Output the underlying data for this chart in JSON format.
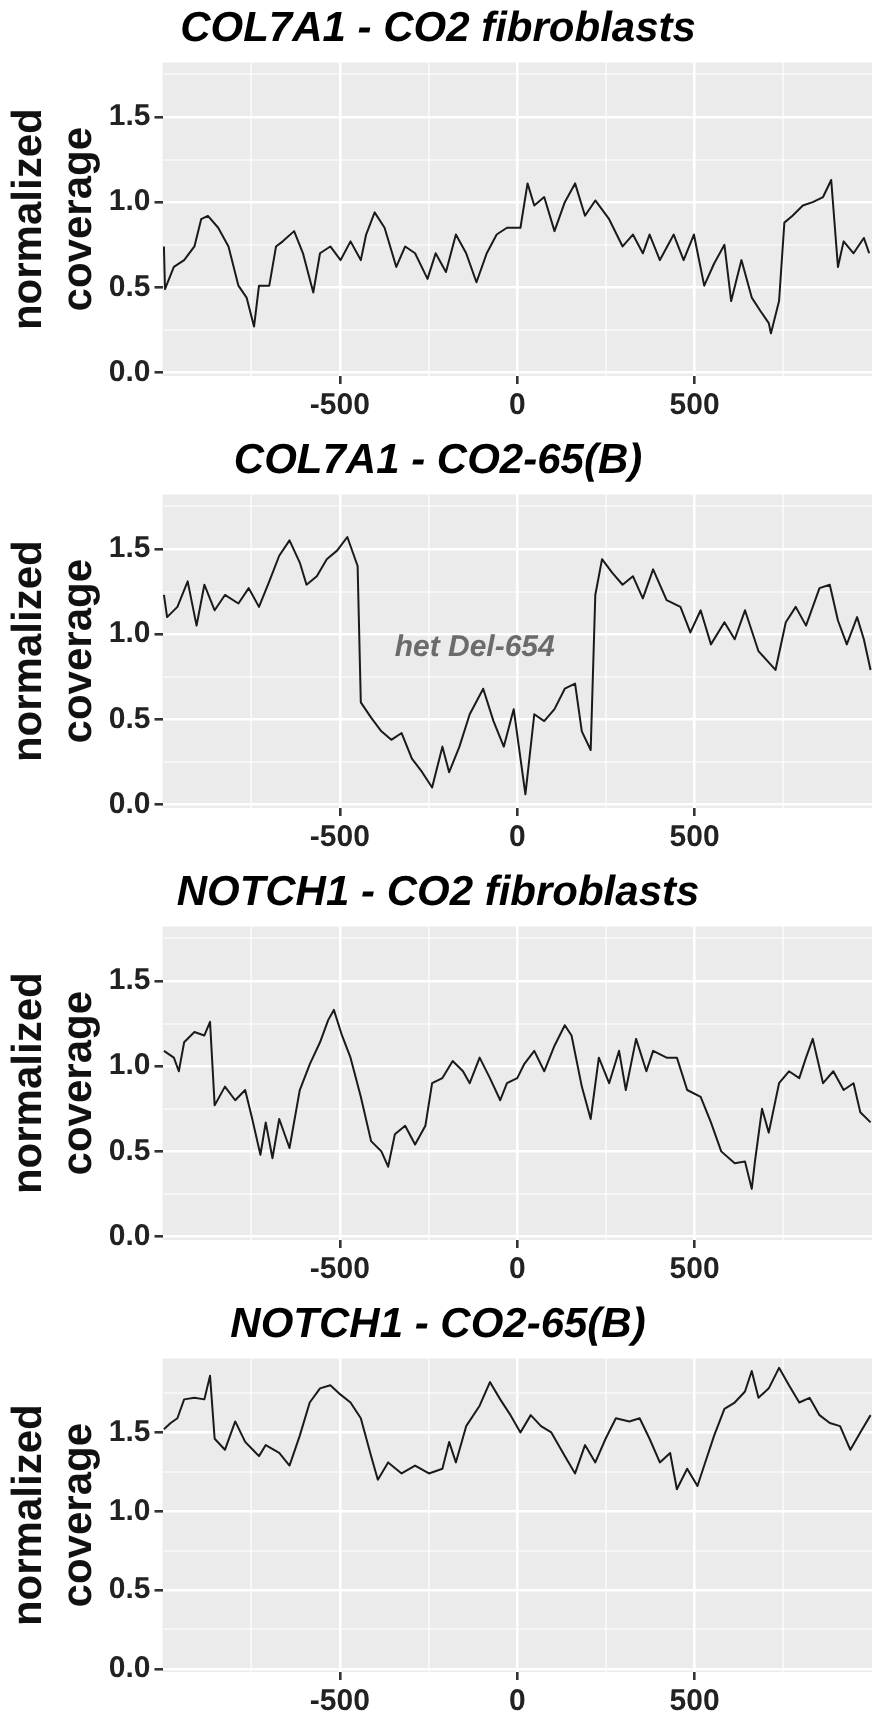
{
  "chart_data": [
    {
      "type": "line",
      "title": "COL7A1 - CO2 fibroblasts",
      "ylabel": "normalized\ncoverage",
      "grid": true,
      "xlim": [
        -1000,
        1000
      ],
      "ylim": [
        -0.02,
        1.82
      ],
      "xticks": [
        {
          "value": -750,
          "label": null
        },
        -500,
        {
          "value": -250,
          "label": null
        },
        0,
        {
          "value": 250,
          "label": null
        },
        500,
        {
          "value": 750,
          "label": null
        }
      ],
      "yticks": [
        {
          "value": 0,
          "label": "0.0"
        },
        {
          "value": 0.25,
          "label": null
        },
        {
          "value": 0.5,
          "label": "0.5"
        },
        {
          "value": 0.75,
          "label": null
        },
        {
          "value": 1,
          "label": "1.0"
        },
        {
          "value": 1.25,
          "label": null
        },
        {
          "value": 1.5,
          "label": "1.5"
        },
        {
          "value": 1.75,
          "label": null
        }
      ],
      "x": [
        -996,
        -993,
        -968,
        -939,
        -910,
        -891,
        -872,
        -843,
        -814,
        -786,
        -763,
        -742,
        -728,
        -699,
        -680,
        -661,
        -629,
        -604,
        -575,
        -556,
        -527,
        -498,
        -470,
        -441,
        -426,
        -402,
        -374,
        -341,
        -316,
        -288,
        -253,
        -230,
        -201,
        -173,
        -144,
        -115,
        -86,
        -58,
        -29,
        9,
        29,
        48,
        76,
        105,
        134,
        163,
        191,
        220,
        259,
        297,
        326,
        354,
        373,
        402,
        441,
        469,
        498,
        527,
        555,
        584,
        603,
        632,
        661,
        686,
        709,
        715,
        738,
        753,
        776,
        805,
        833,
        862,
        885,
        904,
        920,
        948,
        977,
        992
      ],
      "series": [
        {
          "color": "#1a1a1a",
          "values": [
            0.74,
            0.49,
            0.62,
            0.66,
            0.74,
            0.9,
            0.92,
            0.85,
            0.74,
            0.51,
            0.44,
            0.27,
            0.51,
            0.51,
            0.74,
            0.77,
            0.83,
            0.7,
            0.47,
            0.7,
            0.74,
            0.66,
            0.77,
            0.66,
            0.81,
            0.94,
            0.85,
            0.62,
            0.74,
            0.7,
            0.55,
            0.7,
            0.59,
            0.81,
            0.7,
            0.53,
            0.7,
            0.81,
            0.85,
            0.85,
            1.11,
            0.98,
            1.03,
            0.83,
            1.0,
            1.11,
            0.92,
            1.01,
            0.9,
            0.74,
            0.81,
            0.7,
            0.81,
            0.66,
            0.81,
            0.66,
            0.81,
            0.51,
            0.64,
            0.75,
            0.42,
            0.66,
            0.44,
            0.36,
            0.29,
            0.23,
            0.42,
            0.88,
            0.92,
            0.98,
            1.0,
            1.03,
            1.13,
            0.62,
            0.77,
            0.7,
            0.79,
            0.7
          ]
        }
      ]
    },
    {
      "type": "line",
      "title": "COL7A1 - CO2-65(B)",
      "ylabel": "normalized\ncoverage",
      "grid": true,
      "xlim": [
        -1000,
        1000
      ],
      "ylim": [
        -0.02,
        1.82
      ],
      "xticks": [
        {
          "value": -750,
          "label": null
        },
        -500,
        {
          "value": -250,
          "label": null
        },
        0,
        {
          "value": 250,
          "label": null
        },
        500,
        {
          "value": 750,
          "label": null
        }
      ],
      "yticks": [
        {
          "value": 0,
          "label": "0.0"
        },
        {
          "value": 0.25,
          "label": null
        },
        {
          "value": 0.5,
          "label": "0.5"
        },
        {
          "value": 0.75,
          "label": null
        },
        {
          "value": 1,
          "label": "1.0"
        },
        {
          "value": 1.25,
          "label": null
        },
        {
          "value": 1.5,
          "label": "1.5"
        },
        {
          "value": 1.75,
          "label": null
        }
      ],
      "annotations": [
        "het Del-654"
      ],
      "x": [
        -996,
        -987,
        -958,
        -929,
        -904,
        -882,
        -853,
        -824,
        -786,
        -757,
        -728,
        -699,
        -671,
        -642,
        -613,
        -594,
        -565,
        -537,
        -508,
        -479,
        -450,
        -441,
        -412,
        -383,
        -355,
        -326,
        -297,
        -268,
        -240,
        -211,
        -192,
        -163,
        -134,
        -96,
        -67,
        -38,
        -10,
        23,
        48,
        76,
        105,
        134,
        163,
        182,
        207,
        220,
        239,
        268,
        297,
        326,
        354,
        383,
        421,
        460,
        488,
        517,
        546,
        584,
        613,
        642,
        680,
        728,
        757,
        785,
        814,
        852,
        881,
        904,
        929,
        958,
        977,
        996
      ],
      "series": [
        {
          "color": "#1a1a1a",
          "values": [
            1.23,
            1.1,
            1.16,
            1.31,
            1.05,
            1.29,
            1.14,
            1.23,
            1.18,
            1.27,
            1.16,
            1.31,
            1.46,
            1.55,
            1.42,
            1.29,
            1.34,
            1.44,
            1.49,
            1.57,
            1.4,
            0.6,
            0.51,
            0.43,
            0.38,
            0.42,
            0.27,
            0.19,
            0.1,
            0.34,
            0.19,
            0.34,
            0.53,
            0.68,
            0.49,
            0.34,
            0.56,
            0.06,
            0.53,
            0.49,
            0.56,
            0.68,
            0.71,
            0.43,
            0.32,
            1.23,
            1.44,
            1.36,
            1.29,
            1.34,
            1.21,
            1.38,
            1.2,
            1.16,
            1.01,
            1.14,
            0.94,
            1.07,
            0.97,
            1.14,
            0.9,
            0.79,
            1.07,
            1.16,
            1.05,
            1.27,
            1.29,
            1.08,
            0.94,
            1.1,
            0.97,
            0.79
          ]
        }
      ]
    },
    {
      "type": "line",
      "title": "NOTCH1 - CO2 fibroblasts",
      "ylabel": "normalized\ncoverage",
      "grid": true,
      "xlim": [
        -1000,
        1000
      ],
      "ylim": [
        -0.02,
        1.82
      ],
      "xticks": [
        {
          "value": -750,
          "label": null
        },
        -500,
        {
          "value": -250,
          "label": null
        },
        0,
        {
          "value": 250,
          "label": null
        },
        500,
        {
          "value": 750,
          "label": null
        }
      ],
      "yticks": [
        {
          "value": 0,
          "label": "0.0"
        },
        {
          "value": 0.25,
          "label": null
        },
        {
          "value": 0.5,
          "label": "0.5"
        },
        {
          "value": 0.75,
          "label": null
        },
        {
          "value": 1,
          "label": "1.0"
        },
        {
          "value": 1.25,
          "label": null
        },
        {
          "value": 1.5,
          "label": "1.5"
        },
        {
          "value": 1.75,
          "label": null
        }
      ],
      "x": [
        -996,
        -968,
        -954,
        -939,
        -910,
        -882,
        -866,
        -853,
        -824,
        -795,
        -767,
        -747,
        -724,
        -709,
        -690,
        -671,
        -642,
        -613,
        -585,
        -556,
        -533,
        -517,
        -494,
        -470,
        -441,
        -412,
        -383,
        -364,
        -345,
        -316,
        -288,
        -259,
        -240,
        -211,
        -182,
        -153,
        -134,
        -106,
        -77,
        -48,
        -29,
        0,
        19,
        48,
        76,
        105,
        134,
        153,
        182,
        207,
        230,
        259,
        287,
        306,
        335,
        364,
        383,
        421,
        450,
        479,
        517,
        546,
        575,
        613,
        642,
        661,
        670,
        690,
        709,
        738,
        766,
        795,
        814,
        833,
        862,
        891,
        920,
        948,
        967,
        996
      ],
      "series": [
        {
          "color": "#1a1a1a",
          "values": [
            1.09,
            1.05,
            0.97,
            1.14,
            1.2,
            1.18,
            1.26,
            0.77,
            0.88,
            0.8,
            0.86,
            0.69,
            0.48,
            0.67,
            0.46,
            0.69,
            0.52,
            0.86,
            1.01,
            1.14,
            1.27,
            1.33,
            1.18,
            1.05,
            0.82,
            0.56,
            0.5,
            0.41,
            0.6,
            0.65,
            0.54,
            0.65,
            0.9,
            0.93,
            1.03,
            0.97,
            0.9,
            1.05,
            0.93,
            0.8,
            0.9,
            0.93,
            1.01,
            1.09,
            0.97,
            1.12,
            1.24,
            1.18,
            0.88,
            0.69,
            1.05,
            0.9,
            1.09,
            0.86,
            1.16,
            0.97,
            1.09,
            1.05,
            1.05,
            0.86,
            0.82,
            0.67,
            0.5,
            0.43,
            0.44,
            0.28,
            0.44,
            0.75,
            0.61,
            0.9,
            0.97,
            0.93,
            1.05,
            1.16,
            0.9,
            0.97,
            0.86,
            0.9,
            0.73,
            0.67
          ]
        }
      ]
    },
    {
      "type": "line",
      "title": "NOTCH1 - CO2-65(B)",
      "ylabel": "normalized\ncoverage",
      "grid": true,
      "xlim": [
        -1000,
        1000
      ],
      "ylim": [
        -0.02,
        1.97
      ],
      "xticks": [
        {
          "value": -750,
          "label": null
        },
        -500,
        {
          "value": -250,
          "label": null
        },
        0,
        {
          "value": 250,
          "label": null
        },
        500,
        {
          "value": 750,
          "label": null
        }
      ],
      "yticks": [
        {
          "value": 0,
          "label": "0.0"
        },
        {
          "value": 0.25,
          "label": null
        },
        {
          "value": 0.5,
          "label": "0.5"
        },
        {
          "value": 0.75,
          "label": null
        },
        {
          "value": 1,
          "label": "1.0"
        },
        {
          "value": 1.25,
          "label": null
        },
        {
          "value": 1.5,
          "label": "1.5"
        },
        {
          "value": 1.75,
          "label": null
        }
      ],
      "x": [
        -996,
        -977,
        -958,
        -939,
        -910,
        -882,
        -866,
        -853,
        -824,
        -795,
        -767,
        -728,
        -709,
        -671,
        -642,
        -613,
        -585,
        -556,
        -527,
        -498,
        -470,
        -441,
        -412,
        -393,
        -364,
        -326,
        -288,
        -249,
        -211,
        -192,
        -173,
        -144,
        -106,
        -77,
        -48,
        -19,
        9,
        38,
        67,
        96,
        134,
        163,
        191,
        220,
        249,
        278,
        316,
        345,
        373,
        402,
        431,
        450,
        479,
        508,
        527,
        555,
        584,
        613,
        642,
        661,
        680,
        709,
        738,
        766,
        795,
        824,
        852,
        881,
        910,
        939,
        967,
        996
      ],
      "series": [
        {
          "color": "#1a1a1a",
          "values": [
            1.52,
            1.56,
            1.59,
            1.71,
            1.72,
            1.71,
            1.86,
            1.46,
            1.39,
            1.57,
            1.44,
            1.35,
            1.42,
            1.37,
            1.29,
            1.48,
            1.69,
            1.78,
            1.8,
            1.74,
            1.69,
            1.59,
            1.35,
            1.2,
            1.31,
            1.24,
            1.29,
            1.24,
            1.27,
            1.44,
            1.31,
            1.54,
            1.67,
            1.82,
            1.71,
            1.61,
            1.5,
            1.61,
            1.54,
            1.5,
            1.35,
            1.24,
            1.42,
            1.31,
            1.46,
            1.59,
            1.57,
            1.59,
            1.46,
            1.31,
            1.37,
            1.14,
            1.27,
            1.16,
            1.29,
            1.48,
            1.65,
            1.69,
            1.76,
            1.89,
            1.72,
            1.78,
            1.91,
            1.8,
            1.69,
            1.72,
            1.61,
            1.56,
            1.54,
            1.39,
            1.5,
            1.61
          ]
        }
      ]
    }
  ]
}
